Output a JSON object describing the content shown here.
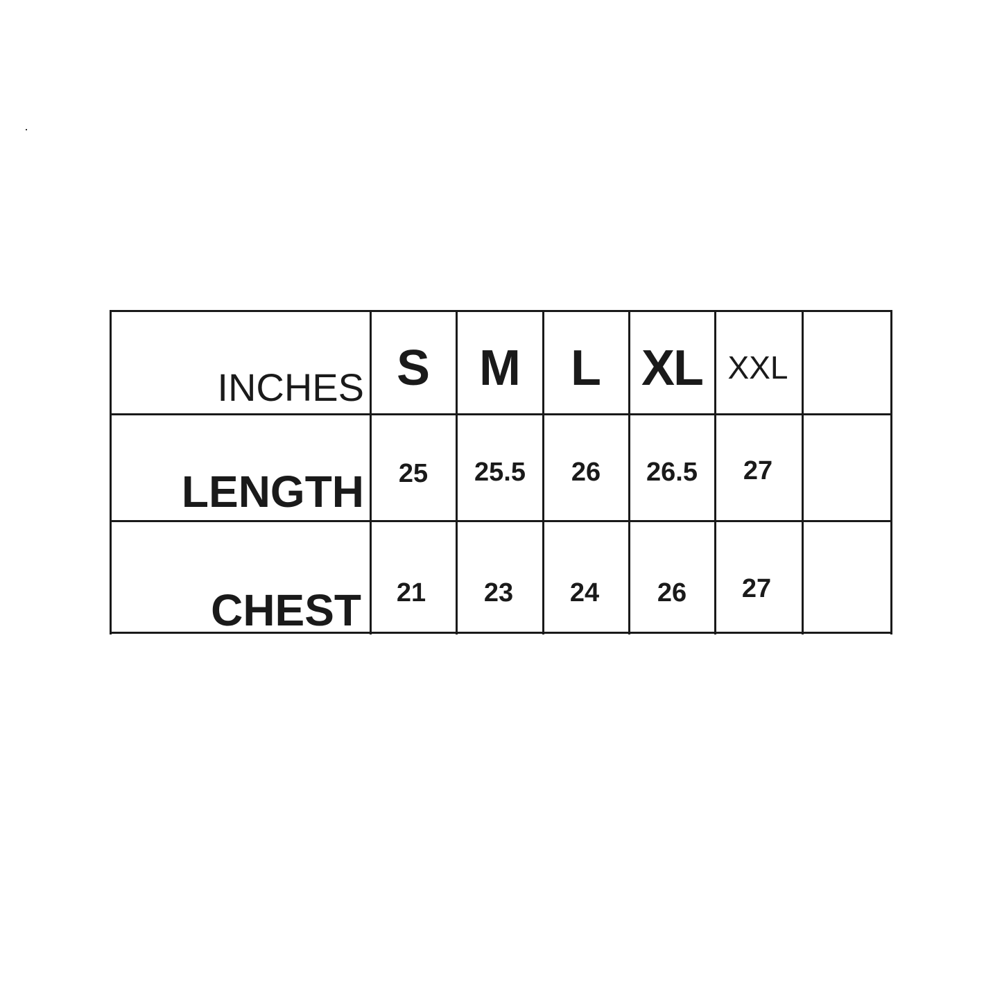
{
  "table": {
    "unit_label": "INCHES",
    "sizes": [
      "S",
      "M",
      "L",
      "XL",
      "XXL",
      ""
    ],
    "rows": [
      {
        "label": "LENGTH",
        "values": [
          "25",
          "25.5",
          "26",
          "26.5",
          "27",
          ""
        ]
      },
      {
        "label": "CHEST",
        "values": [
          "21",
          "23",
          "24",
          "26",
          "27",
          ""
        ]
      }
    ]
  },
  "colors": {
    "line": "#1a1a1a",
    "text": "#1a1a1a",
    "background": "#ffffff"
  }
}
